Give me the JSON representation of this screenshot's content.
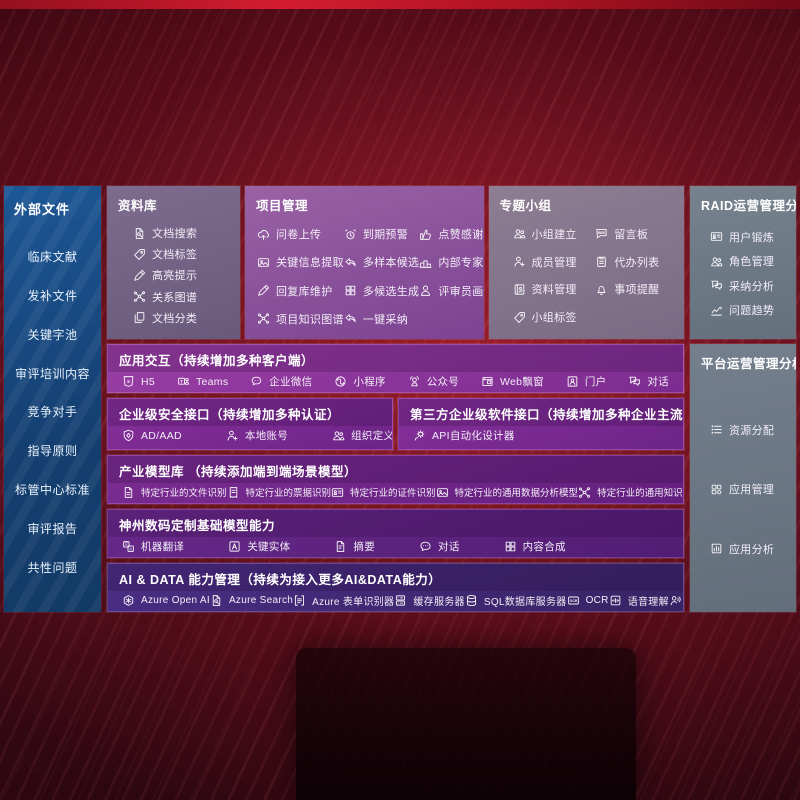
{
  "left_sidebar": {
    "title": "外部文件",
    "items": [
      "临床文献",
      "发补文件",
      "关键字池",
      "审评培训内容",
      "竞争对手",
      "指导原则",
      "标管中心标准",
      "审评报告",
      "共性问题"
    ]
  },
  "library": {
    "title": "资料库",
    "items": [
      {
        "label": "文档搜索",
        "icon": "doc-search"
      },
      {
        "label": "文档标签",
        "icon": "tag"
      },
      {
        "label": "高亮提示",
        "icon": "pen"
      },
      {
        "label": "关系图谱",
        "icon": "graph"
      },
      {
        "label": "文档分类",
        "icon": "docs"
      }
    ]
  },
  "project": {
    "title": "项目管理",
    "items": [
      {
        "label": "问卷上传",
        "icon": "cloud-up"
      },
      {
        "label": "到期预警",
        "icon": "alarm"
      },
      {
        "label": "点赞感谢",
        "icon": "thumb"
      },
      {
        "label": "关键信息提取",
        "icon": "image"
      },
      {
        "label": "多样本候选",
        "icon": "reply"
      },
      {
        "label": "内部专家排名",
        "icon": "podium"
      },
      {
        "label": "回复库维护",
        "icon": "pen"
      },
      {
        "label": "多候选生成",
        "icon": "puzzle"
      },
      {
        "label": "评审员画像",
        "icon": "person"
      },
      {
        "label": "项目知识图谱",
        "icon": "graph"
      },
      {
        "label": "一键采纳",
        "icon": "reply"
      }
    ]
  },
  "groups": {
    "title": "专题小组",
    "items": [
      {
        "label": "小组建立",
        "icon": "people"
      },
      {
        "label": "留言板",
        "icon": "bbs"
      },
      {
        "label": "成员管理",
        "icon": "person-plus"
      },
      {
        "label": "代办列表",
        "icon": "clipboard"
      },
      {
        "label": "资料管理",
        "icon": "album"
      },
      {
        "label": "事项提醒",
        "icon": "bell"
      },
      {
        "label": "小组标签",
        "icon": "tag"
      }
    ]
  },
  "raid": {
    "title": "RAID运营管理分析",
    "items": [
      {
        "label": "用户锻炼",
        "icon": "card"
      },
      {
        "label": "角色管理",
        "icon": "people"
      },
      {
        "label": "采纳分析",
        "icon": "qa"
      },
      {
        "label": "问题趋势",
        "icon": "trend"
      }
    ]
  },
  "platform": {
    "title": "平台运营管理分析",
    "items": [
      {
        "label": "资源分配",
        "icon": "list"
      },
      {
        "label": "应用管理",
        "icon": "grid"
      },
      {
        "label": "应用分析",
        "icon": "chart-box"
      }
    ]
  },
  "interaction": {
    "title": "应用交互（持续增加多种客户端）",
    "items": [
      {
        "label": "H5",
        "icon": "h5"
      },
      {
        "label": "Teams",
        "icon": "teams"
      },
      {
        "label": "企业微信",
        "icon": "wechat-work"
      },
      {
        "label": "小程序",
        "icon": "miniprogram"
      },
      {
        "label": "公众号",
        "icon": "official-account"
      },
      {
        "label": "Web飘窗",
        "icon": "window"
      },
      {
        "label": "门户",
        "icon": "portal"
      },
      {
        "label": "对话",
        "icon": "qa"
      }
    ]
  },
  "security": {
    "title": "企业级安全接口（持续增加多种认证）",
    "items": [
      {
        "label": "AD/AAD",
        "icon": "shield"
      },
      {
        "label": "本地账号",
        "icon": "person-plus"
      },
      {
        "label": "组织定义",
        "icon": "people"
      }
    ]
  },
  "thirdparty": {
    "title": "第三方企业级软件接口（持续增加多种企业主流软件接口）",
    "items": [
      {
        "label": "API自动化设计器",
        "icon": "api-gear"
      }
    ]
  },
  "models": {
    "title": "产业模型库 （持续添加端到端场景模型）",
    "items": [
      {
        "label": "特定行业的文件识别",
        "icon": "doc"
      },
      {
        "label": "特定行业的票据识别",
        "icon": "receipt"
      },
      {
        "label": "特定行业的证件识别",
        "icon": "card"
      },
      {
        "label": "特定行业的通用数据分析模型",
        "icon": "image"
      },
      {
        "label": "特定行业的通用知识图谱模型",
        "icon": "graph"
      }
    ]
  },
  "base_models": {
    "title": "神州数码定制基础模型能力",
    "items": [
      {
        "label": "机器翻译",
        "icon": "translate"
      },
      {
        "label": "关键实体",
        "icon": "a-badge"
      },
      {
        "label": "摘要",
        "icon": "summary"
      },
      {
        "label": "对话",
        "icon": "chat-dots"
      },
      {
        "label": "内容合成",
        "icon": "puzzle"
      }
    ]
  },
  "ai_data": {
    "title": "AI & DATA 能力管理（持续为接入更多AI&DATA能力）",
    "items": [
      {
        "label": "Azure Open AI",
        "icon": "openai"
      },
      {
        "label": "Azure Search",
        "icon": "doc-search"
      },
      {
        "label": "Azure 表单识别器",
        "icon": "form-recognizer"
      },
      {
        "label": "缓存服务器",
        "icon": "server"
      },
      {
        "label": "SQL数据库服务器",
        "icon": "db"
      },
      {
        "label": "OCR",
        "icon": "ocr"
      },
      {
        "label": "语音理解",
        "icon": "speech"
      },
      {
        "label": "TTS",
        "icon": "tts"
      }
    ]
  },
  "colors": {
    "sidebar_blue": "#1a5190",
    "panel_purple": "#8d3a99",
    "panel_indigo": "#41307d",
    "box_gray_purple": "#73617f",
    "box_slate": "#6d7886",
    "background_red": "#5c1220",
    "text_white": "#ffffff"
  }
}
